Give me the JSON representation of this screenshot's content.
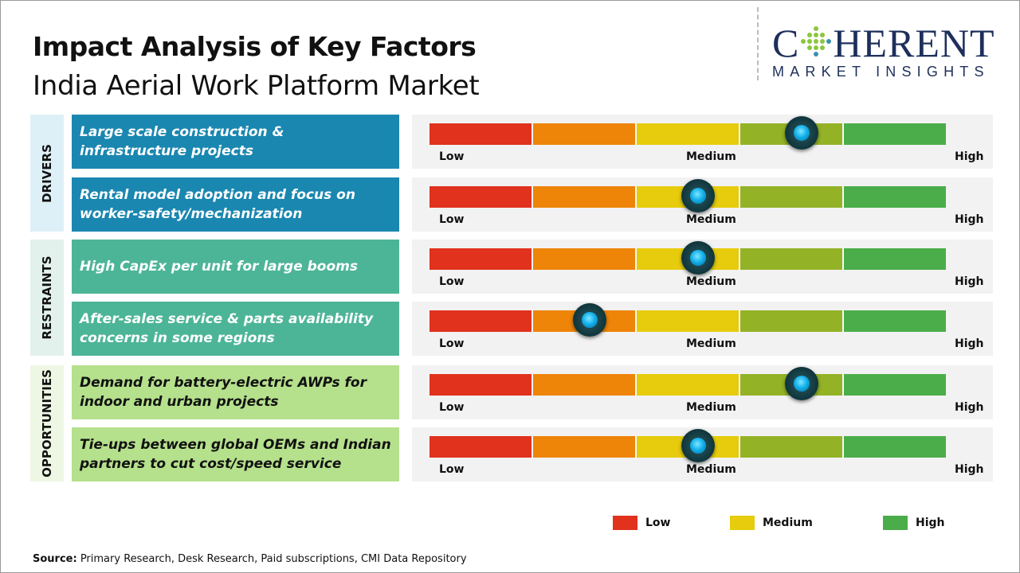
{
  "header": {
    "title": "Impact Analysis of Key Factors",
    "subtitle": "India Aerial Work Platform Market"
  },
  "logo": {
    "main_pre": "C",
    "main_post": "HERENT",
    "sub": "MARKET INSIGHTS"
  },
  "categories": [
    {
      "label": "DRIVERS",
      "color": "#1a87b0",
      "label_bg": "#def0f7",
      "text_color": "#ffffff"
    },
    {
      "label": "RESTRAINTS",
      "color": "#4db597",
      "label_bg": "#e3f1ec",
      "text_color": "#ffffff"
    },
    {
      "label": "OPPORTUNITIES",
      "color": "#b5e08c",
      "label_bg": "#eef7e4",
      "text_color": "#111111"
    }
  ],
  "chart_data": {
    "type": "gauge",
    "scale_labels": [
      "Low",
      "Medium",
      "High"
    ],
    "segment_colors": [
      "#e0321c",
      "#ee8408",
      "#e6cc0c",
      "#93b226",
      "#4aad49"
    ],
    "scale_range": [
      0,
      1
    ],
    "items": [
      {
        "category": 0,
        "factor": "Large scale construction & infrastructure projects",
        "impact": 0.72
      },
      {
        "category": 0,
        "factor": "Rental model adoption and focus on worker-safety/mechanization",
        "impact": 0.52
      },
      {
        "category": 1,
        "factor": "High CapEx per unit for large booms",
        "impact": 0.52
      },
      {
        "category": 1,
        "factor": "After-sales service & parts availability concerns in some regions",
        "impact": 0.31
      },
      {
        "category": 2,
        "factor": "Demand for battery-electric AWPs for indoor and urban projects",
        "impact": 0.72
      },
      {
        "category": 2,
        "factor": "Tie-ups between global OEMs and Indian partners to cut cost/speed service",
        "impact": 0.52
      }
    ],
    "legend": [
      {
        "label": "Low",
        "color": "#e0321c"
      },
      {
        "label": "Medium",
        "color": "#e6cc0c"
      },
      {
        "label": "High",
        "color": "#4aad49"
      }
    ]
  },
  "source": {
    "label": "Source:",
    "text": " Primary Research, Desk Research, Paid subscriptions, CMI Data Repository"
  }
}
